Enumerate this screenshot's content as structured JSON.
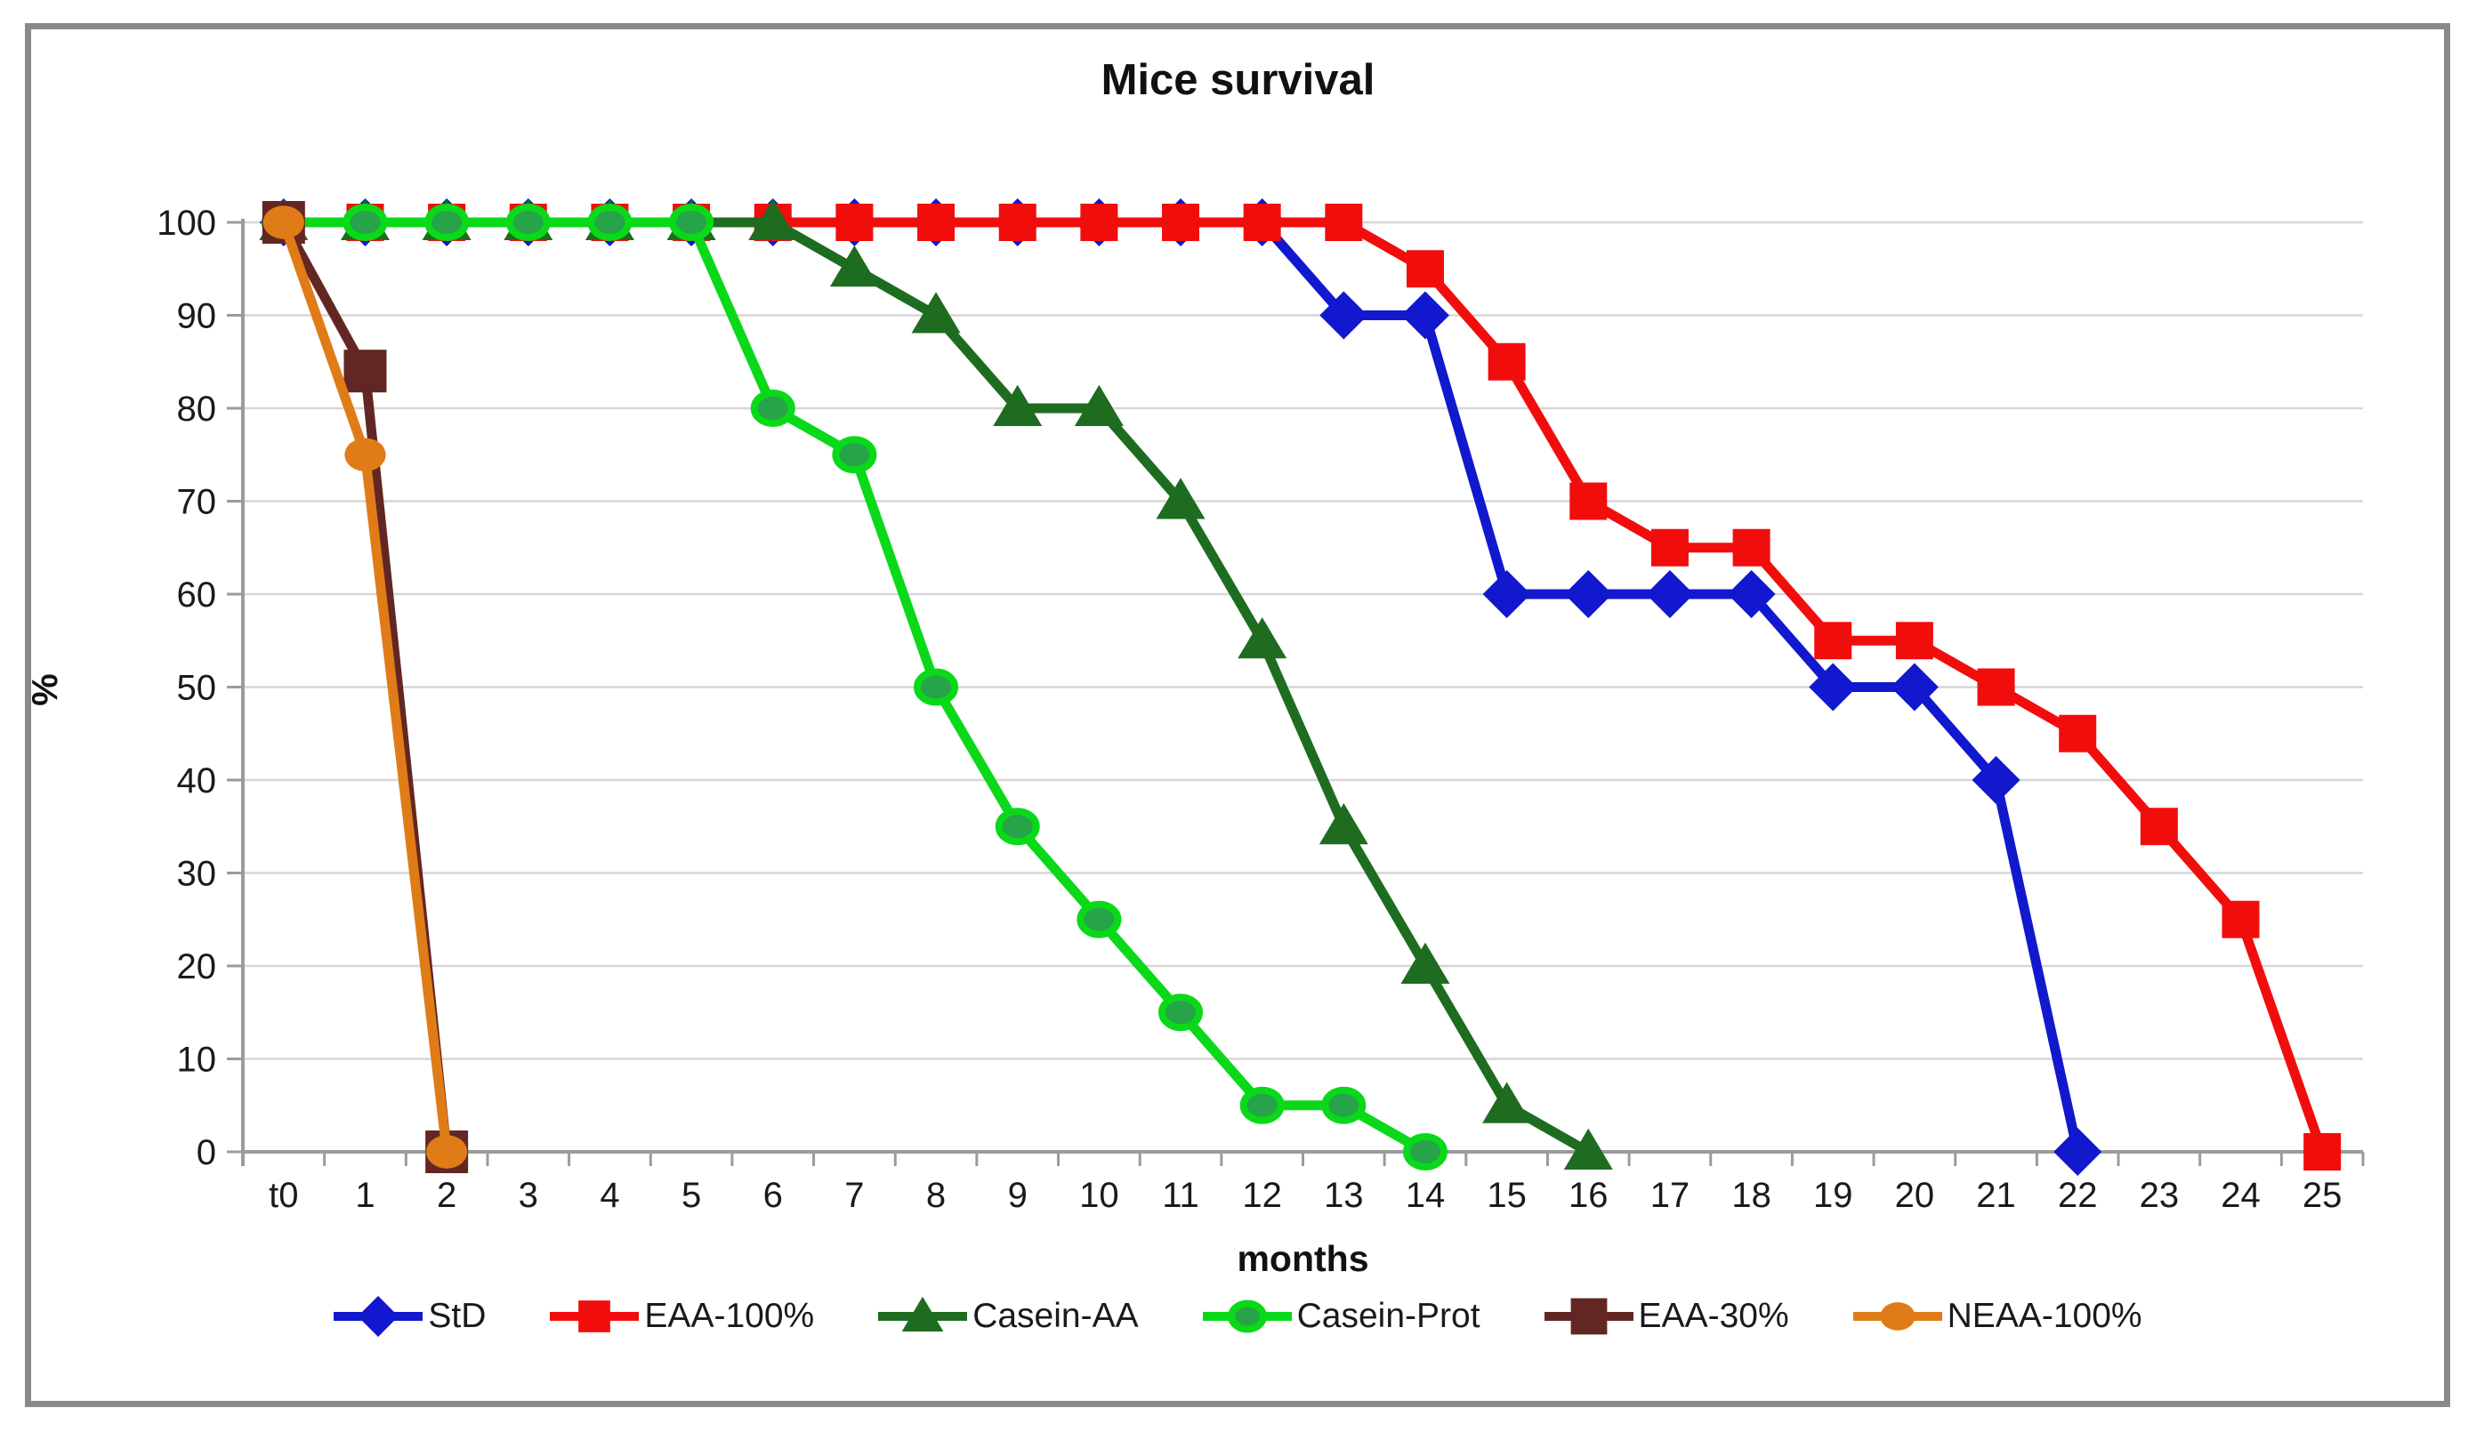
{
  "chart_data": {
    "type": "line",
    "title": "Mice survival",
    "xlabel": "months",
    "ylabel": "%",
    "categories": [
      "t0",
      "1",
      "2",
      "3",
      "4",
      "5",
      "6",
      "7",
      "8",
      "9",
      "10",
      "11",
      "12",
      "13",
      "14",
      "15",
      "16",
      "17",
      "18",
      "19",
      "20",
      "21",
      "22",
      "23",
      "24",
      "25"
    ],
    "ylim": [
      0,
      100
    ],
    "ytick_step": 10,
    "grid": true,
    "legend_position": "bottom",
    "series": [
      {
        "name": "StD",
        "color": "#1218CE",
        "marker": "diamond",
        "marker_size": 27,
        "values": [
          100,
          100,
          100,
          100,
          100,
          100,
          100,
          100,
          100,
          100,
          100,
          100,
          100,
          90,
          90,
          60,
          60,
          60,
          60,
          50,
          50,
          40,
          0,
          null,
          null,
          null
        ]
      },
      {
        "name": "EAA-100%",
        "color": "#F20D0D",
        "marker": "square",
        "marker_size": 21,
        "values": [
          100,
          100,
          100,
          100,
          100,
          100,
          100,
          100,
          100,
          100,
          100,
          100,
          100,
          100,
          95,
          85,
          70,
          65,
          65,
          55,
          55,
          50,
          45,
          35,
          25,
          0
        ]
      },
      {
        "name": "Casein-AA",
        "color": "#1E6C1F",
        "marker": "triangle",
        "marker_size": 25,
        "values": [
          100,
          100,
          100,
          100,
          100,
          100,
          100,
          95,
          90,
          80,
          80,
          70,
          55,
          35,
          20,
          5,
          0,
          null,
          null,
          null,
          null,
          null,
          null,
          null,
          null,
          null
        ]
      },
      {
        "name": "Casein-Prot",
        "color": "#09D919",
        "marker": "circle",
        "marker_fill": "#27A349",
        "marker_stroke": "#09D919",
        "marker_size": 20,
        "values": [
          100,
          100,
          100,
          100,
          100,
          100,
          80,
          75,
          50,
          35,
          25,
          15,
          5,
          5,
          0,
          null,
          null,
          null,
          null,
          null,
          null,
          null,
          null,
          null,
          null,
          null
        ]
      },
      {
        "name": "EAA-30%",
        "color": "#632723",
        "marker": "square",
        "marker_size": 24,
        "values": [
          100,
          84,
          0,
          null,
          null,
          null,
          null,
          null,
          null,
          null,
          null,
          null,
          null,
          null,
          null,
          null,
          null,
          null,
          null,
          null,
          null,
          null,
          null,
          null,
          null,
          null
        ]
      },
      {
        "name": "NEAA-100%",
        "color": "#E07C17",
        "marker": "circle",
        "marker_fill": "#E07C17",
        "marker_size": 22,
        "values": [
          100,
          75,
          0,
          null,
          null,
          null,
          null,
          null,
          null,
          null,
          null,
          null,
          null,
          null,
          null,
          null,
          null,
          null,
          null,
          null,
          null,
          null,
          null,
          null,
          null,
          null
        ]
      }
    ]
  },
  "colors": {
    "frame": "#8A8A8A",
    "gridline": "#D6D6D6",
    "axis": "#9B9B9B",
    "text": "#1A1A1A"
  }
}
